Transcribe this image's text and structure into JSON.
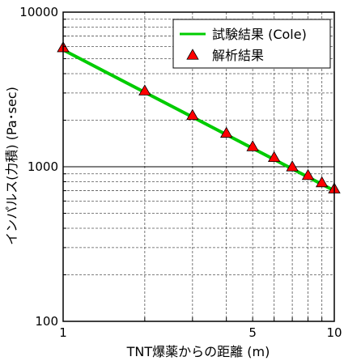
{
  "chart_data": {
    "type": "line",
    "title": "",
    "xlabel": "TNT爆薬からの距離 (m)",
    "ylabel": "インパルス(力積) (Pa･sec)",
    "x_scale": "log",
    "y_scale": "log",
    "xlim": [
      1,
      10
    ],
    "ylim": [
      100,
      10000
    ],
    "x_tick_labels": [
      "1",
      "5",
      "10"
    ],
    "y_tick_labels": [
      "100",
      "1000",
      "10000"
    ],
    "grid": true,
    "legend_position": "top-right",
    "series": [
      {
        "name": "試験結果 (Cole)",
        "type": "line",
        "color": "#00cc00",
        "x": [
          1,
          10
        ],
        "y": [
          5700,
          700
        ]
      },
      {
        "name": "解析結果",
        "type": "scatter",
        "marker": "triangle",
        "color": "#ff0000",
        "x": [
          1,
          2,
          3,
          4,
          5,
          6,
          7,
          8,
          9,
          10
        ],
        "y": [
          5900,
          3100,
          2150,
          1650,
          1350,
          1150,
          1000,
          880,
          790,
          720
        ]
      }
    ]
  }
}
